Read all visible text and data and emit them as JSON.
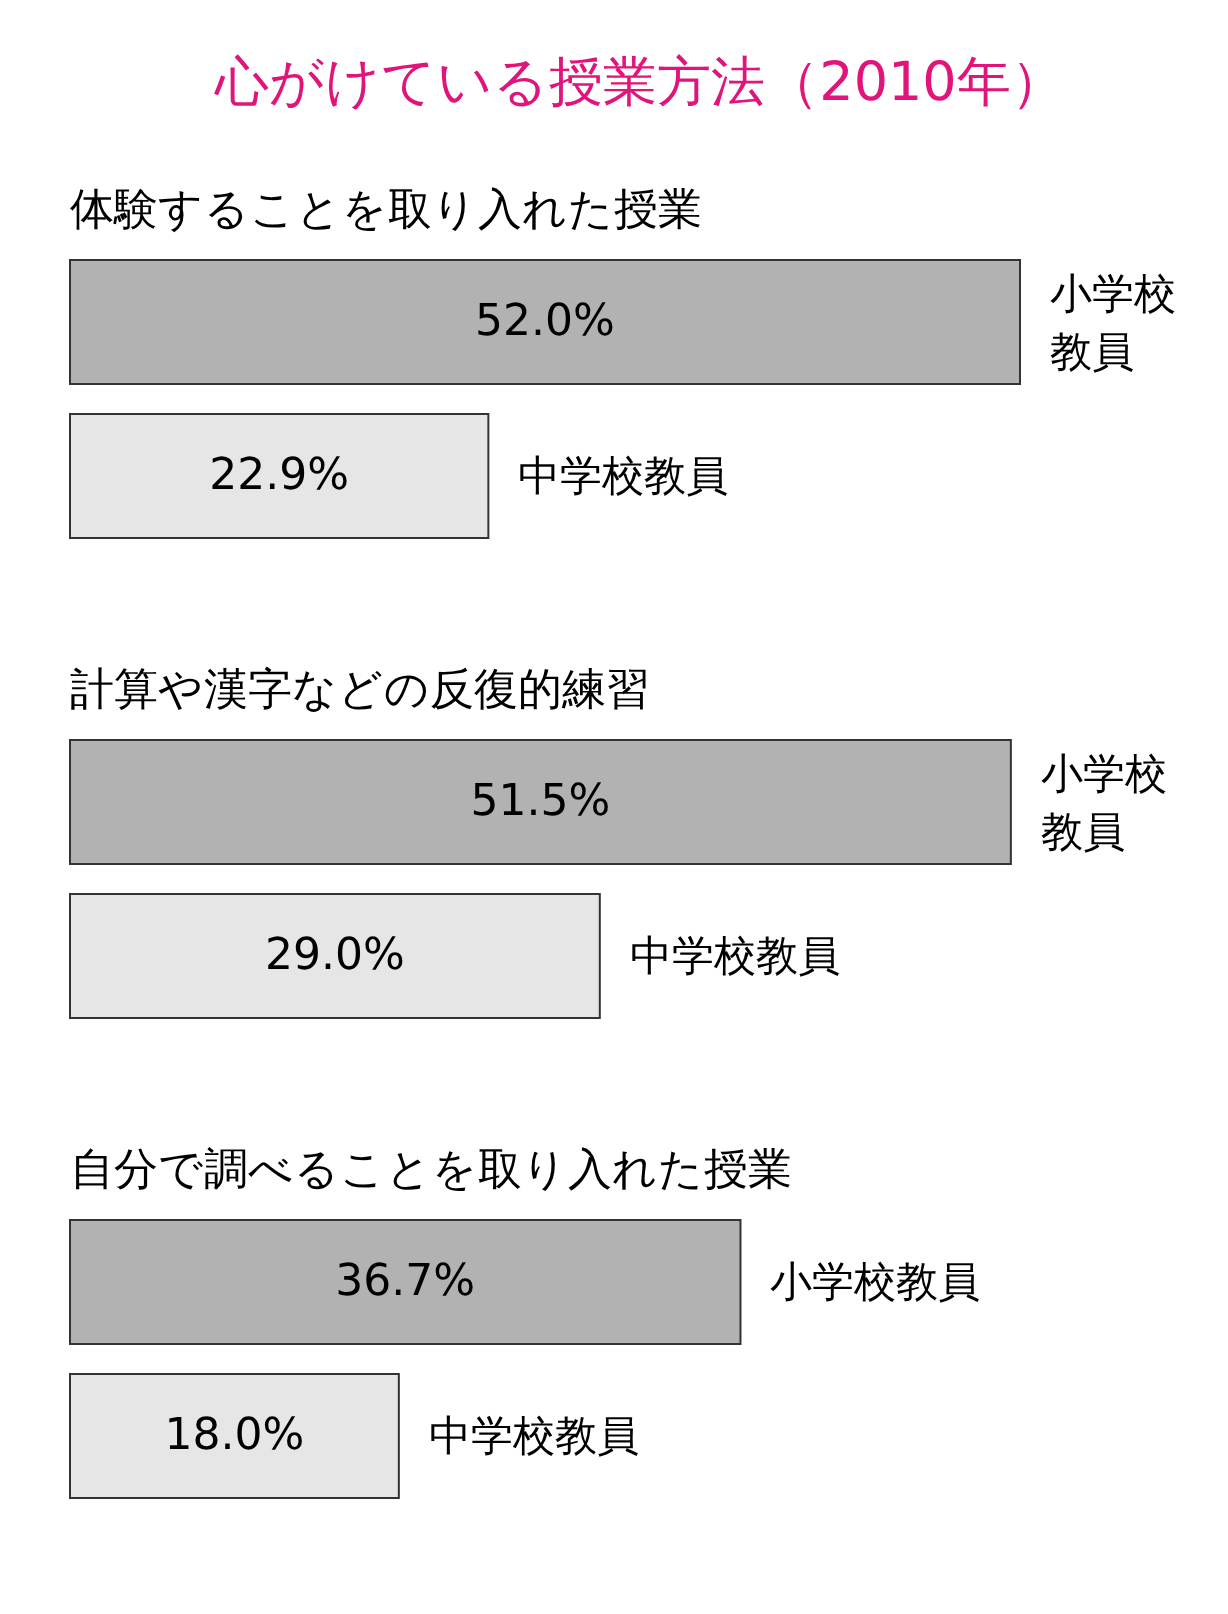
{
  "chart_data": {
    "type": "bar",
    "orientation": "horizontal",
    "title": "心がけている授業方法（2010年）",
    "categories": [
      "体験することを取り入れた授業",
      "計算や漢字などの反復的練習",
      "自分で調べることを取り入れた授業"
    ],
    "series": [
      {
        "name": "小学校教員",
        "color": "#b2b2b2",
        "values": [
          52.0,
          51.5,
          36.7
        ],
        "value_labels": [
          "52.0%",
          "51.5%",
          "36.7%"
        ]
      },
      {
        "name": "中学校教員",
        "color": "#e6e6e6",
        "values": [
          22.9,
          29.0,
          18.0
        ],
        "value_labels": [
          "22.9%",
          "29.0%",
          "18.0%"
        ]
      }
    ]
  }
}
